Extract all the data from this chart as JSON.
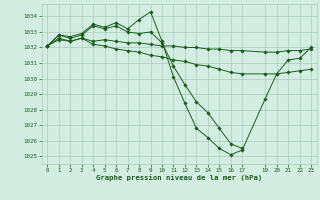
{
  "bg_color": "#d4ede3",
  "grid_color": "#a8ccbb",
  "line_color": "#1a5c1a",
  "marker_color": "#1a5c1a",
  "xlabel": "Graphe pression niveau de la mer (hPa)",
  "xlabel_color": "#1a5c1a",
  "tick_color": "#1a5c1a",
  "ylim": [
    1024.5,
    1034.8
  ],
  "xlim": [
    -0.5,
    23.5
  ],
  "yticks": [
    1025,
    1026,
    1027,
    1028,
    1029,
    1030,
    1031,
    1032,
    1033,
    1034
  ],
  "xticks": [
    0,
    1,
    2,
    3,
    4,
    5,
    6,
    7,
    8,
    9,
    10,
    11,
    12,
    13,
    14,
    15,
    16,
    17,
    19,
    20,
    21,
    22,
    23
  ],
  "series": [
    {
      "x": [
        0,
        1,
        2,
        3,
        4,
        5,
        6,
        7,
        8,
        9,
        10,
        11,
        12,
        13,
        14,
        15,
        16,
        17,
        19,
        20,
        21,
        22,
        23
      ],
      "y": [
        1032.1,
        1032.8,
        1032.7,
        1032.9,
        1033.5,
        1033.3,
        1033.6,
        1033.2,
        1033.8,
        1034.3,
        1032.4,
        1030.1,
        1028.4,
        1026.8,
        1026.2,
        1025.5,
        1025.1,
        1025.4,
        1028.7,
        1030.3,
        1031.2,
        1031.3,
        1032.0
      ]
    },
    {
      "x": [
        0,
        1,
        2,
        3,
        4,
        5,
        6,
        7,
        8,
        9,
        10,
        11,
        12,
        13,
        14,
        15,
        16,
        17
      ],
      "y": [
        1032.1,
        1032.8,
        1032.6,
        1032.8,
        1033.4,
        1033.2,
        1033.4,
        1033.0,
        1032.9,
        1033.0,
        1032.3,
        1030.8,
        1029.6,
        1028.5,
        1027.8,
        1026.8,
        1025.8,
        1025.5
      ]
    },
    {
      "x": [
        0,
        1,
        2,
        3,
        4,
        5,
        6,
        7,
        8,
        9,
        10,
        11,
        12,
        13,
        14,
        15,
        16,
        17,
        19,
        20,
        21,
        22,
        23
      ],
      "y": [
        1032.1,
        1032.5,
        1032.4,
        1032.6,
        1032.4,
        1032.5,
        1032.4,
        1032.3,
        1032.3,
        1032.2,
        1032.1,
        1032.1,
        1032.0,
        1032.0,
        1031.9,
        1031.9,
        1031.8,
        1031.8,
        1031.7,
        1031.7,
        1031.8,
        1031.8,
        1031.9
      ]
    },
    {
      "x": [
        0,
        1,
        2,
        3,
        4,
        5,
        6,
        7,
        8,
        9,
        10,
        11,
        12,
        13,
        14,
        15,
        16,
        17,
        19,
        20,
        21,
        22,
        23
      ],
      "y": [
        1032.1,
        1032.6,
        1032.4,
        1032.6,
        1032.2,
        1032.1,
        1031.9,
        1031.8,
        1031.7,
        1031.5,
        1031.4,
        1031.2,
        1031.1,
        1030.9,
        1030.8,
        1030.6,
        1030.4,
        1030.3,
        1030.3,
        1030.3,
        1030.4,
        1030.5,
        1030.6
      ]
    }
  ]
}
